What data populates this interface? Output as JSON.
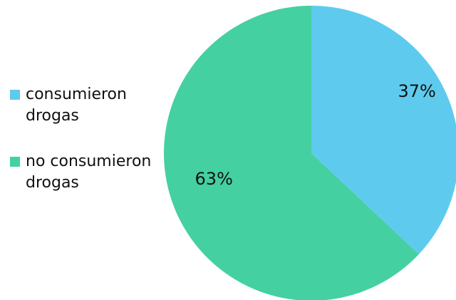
{
  "chart_data": {
    "type": "pie",
    "series": [
      {
        "name": "",
        "categories": [
          "consumieron drogas",
          "no consumieron drogas"
        ],
        "values": [
          37,
          63
        ],
        "labels": [
          "37%",
          "63%"
        ],
        "colors": [
          "#5ECBEE",
          "#45D0A2"
        ]
      }
    ],
    "legend": {
      "position": "left",
      "items": [
        {
          "label": "consumieron drogas",
          "color": "#5ECBEE"
        },
        {
          "label": "no consumieron drogas",
          "color": "#45D0A2"
        }
      ]
    }
  }
}
